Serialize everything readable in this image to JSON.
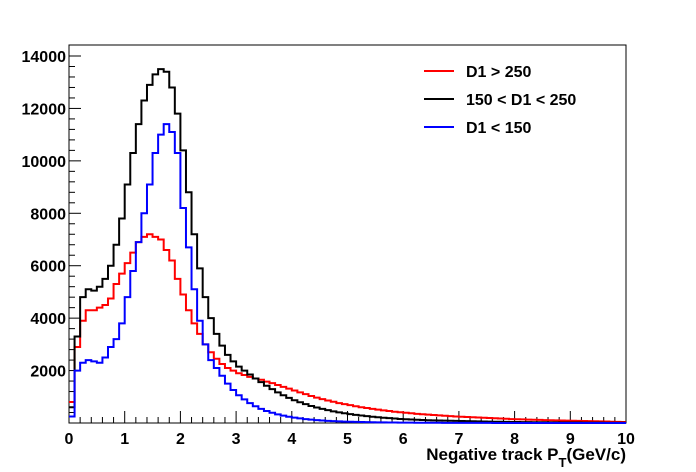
{
  "chart_data": {
    "type": "histogram",
    "title": "",
    "xlabel": "Negative track P",
    "xlabel_subscript": "T",
    "xlabel_unit": "(GeV/c)",
    "ylabel": "",
    "xlim": [
      0,
      10
    ],
    "ylim": [
      0,
      14000
    ],
    "bin_width": 0.1,
    "x_ticks": [
      "0",
      "1",
      "2",
      "3",
      "4",
      "5",
      "6",
      "7",
      "8",
      "9",
      "10"
    ],
    "y_ticks": [
      "2000",
      "4000",
      "6000",
      "8000",
      "10000",
      "12000",
      "14000"
    ],
    "legend_position": "top-right",
    "series": [
      {
        "name": "D1 > 250",
        "color": "#ff0000",
        "values": [
          800,
          2900,
          3900,
          4300,
          4300,
          4400,
          4500,
          4750,
          5300,
          5700,
          6100,
          6500,
          6900,
          7100,
          7200,
          7100,
          7000,
          6600,
          6200,
          5500,
          4900,
          4300,
          3800,
          3400,
          3000,
          2700,
          2450,
          2250,
          2100,
          2000,
          1900,
          1830,
          1760,
          1700,
          1650,
          1580,
          1520,
          1450,
          1380,
          1310,
          1240,
          1170,
          1100,
          1030,
          970,
          910,
          860,
          810,
          760,
          720,
          680,
          640,
          600,
          570,
          540,
          510,
          480,
          460,
          430,
          410,
          390,
          370,
          350,
          335,
          320,
          305,
          290,
          275,
          260,
          250,
          240,
          230,
          220,
          210,
          200,
          190,
          180,
          170,
          160,
          150,
          145,
          140,
          130,
          125,
          120,
          110,
          105,
          100,
          95,
          90,
          85,
          80,
          75,
          70,
          65,
          60,
          55,
          50,
          45,
          40
        ]
      },
      {
        "name": "150 < D1 < 250",
        "color": "#000000",
        "values": [
          600,
          3300,
          4800,
          5100,
          5050,
          5200,
          5500,
          6000,
          6800,
          7800,
          9100,
          10300,
          11400,
          12300,
          12900,
          13300,
          13500,
          13400,
          12800,
          11800,
          10400,
          8800,
          7200,
          5900,
          4800,
          4000,
          3400,
          2950,
          2600,
          2350,
          2150,
          2000,
          1850,
          1700,
          1560,
          1420,
          1290,
          1170,
          1060,
          960,
          870,
          790,
          720,
          650,
          590,
          540,
          490,
          445,
          405,
          370,
          340,
          310,
          285,
          260,
          240,
          220,
          200,
          185,
          170,
          155,
          145,
          135,
          125,
          115,
          105,
          100,
          95,
          90,
          85,
          80,
          75,
          70,
          65,
          60,
          55,
          52,
          49,
          46,
          43,
          40,
          37,
          35,
          33,
          31,
          29,
          27,
          25,
          23,
          21,
          20,
          18,
          17,
          16,
          15,
          14,
          13,
          12,
          11,
          10,
          9
        ]
      },
      {
        "name": "D1 < 150",
        "color": "#0000ff",
        "values": [
          250,
          2000,
          2300,
          2400,
          2350,
          2300,
          2500,
          2900,
          3200,
          3800,
          4800,
          5800,
          6900,
          8000,
          9100,
          10300,
          11000,
          11400,
          11100,
          10300,
          8200,
          6700,
          5100,
          3900,
          3000,
          2400,
          2100,
          1800,
          1500,
          1260,
          1060,
          900,
          760,
          640,
          540,
          460,
          390,
          330,
          280,
          240,
          205,
          175,
          150,
          128,
          110,
          95,
          82,
          71,
          62,
          54,
          47,
          41,
          36,
          32,
          28,
          25,
          22,
          20,
          18,
          16,
          14,
          13,
          12,
          11,
          10,
          9,
          8,
          7,
          6,
          5,
          5,
          4,
          4,
          3,
          3,
          3,
          2,
          2,
          2,
          2,
          1,
          1,
          1,
          1,
          1,
          1,
          1,
          1,
          1,
          1,
          0,
          0,
          0,
          0,
          0,
          0,
          0,
          0,
          0,
          0
        ]
      }
    ]
  }
}
